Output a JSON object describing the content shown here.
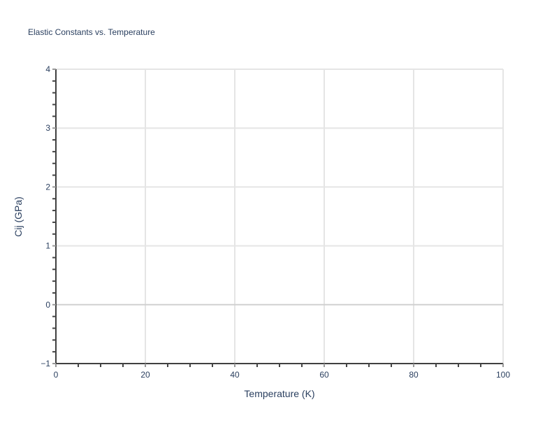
{
  "chart_data": {
    "type": "line",
    "title": "Elastic Constants vs. Temperature",
    "xlabel": "Temperature (K)",
    "ylabel": "Cij (GPa)",
    "xlim": [
      0,
      100
    ],
    "ylim": [
      -1,
      4
    ],
    "xticks": [
      0,
      20,
      40,
      60,
      80,
      100
    ],
    "yticks": [
      -1,
      0,
      1,
      2,
      3,
      4
    ],
    "x_minor_step": 5,
    "y_minor_step": 0.2,
    "grid": true,
    "series": [],
    "colors": {
      "text": "#2a3f5f",
      "grid": "#e5e5e5",
      "zeroline": "#d0d0d0",
      "axis": "#000000"
    }
  }
}
